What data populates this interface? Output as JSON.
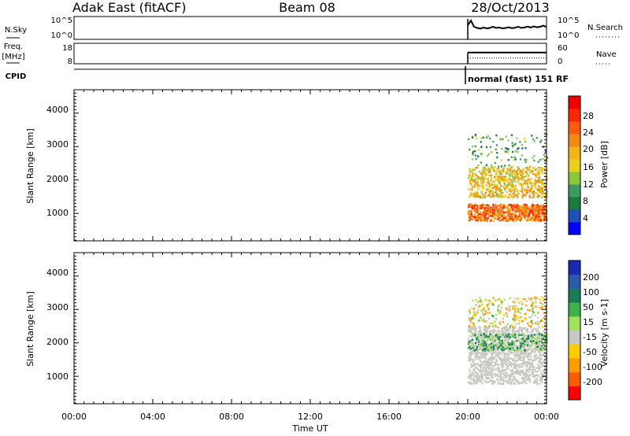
{
  "header": {
    "station": "Adak East (fitACF)",
    "beam": "Beam 08",
    "date": "28/Oct/2013"
  },
  "noise_panel": {
    "left_label": "N.Sky",
    "left_ticks": [
      "10^5",
      "10^0"
    ],
    "right_ticks": [
      "10^5",
      "10^0"
    ],
    "right_label": "N.Search",
    "sky_levels": [
      0.62,
      0.82,
      0.55,
      0.5,
      0.47,
      0.52,
      0.48,
      0.5,
      0.55,
      0.5,
      0.52,
      0.48,
      0.5,
      0.53,
      0.49,
      0.51,
      0.55,
      0.5,
      0.52,
      0.56,
      0.52,
      0.57,
      0.53,
      0.55,
      0.6,
      0.54
    ]
  },
  "freq_panel": {
    "left_label": "Freq.",
    "left_unit": "[MHz]",
    "left_ticks": [
      "18",
      "8"
    ],
    "right_ticks": [
      "60",
      "0"
    ],
    "right_label": "Nave",
    "freq_level": 0.55,
    "nave_level": 0.28
  },
  "cpid": {
    "label": "CPID",
    "mode": "normal (fast) 151 RF"
  },
  "power_legend": {
    "title": "Power [dB]",
    "ticks": [
      "28",
      "24",
      "20",
      "16",
      "12",
      "8",
      "4"
    ],
    "colors": [
      "#0000ff",
      "#1f4fb8",
      "#1b7a3c",
      "#3e9a60",
      "#8cc63c",
      "#e8d11d",
      "#f5b31a",
      "#f08a12",
      "#ff5a10",
      "#ff2600",
      "#f00000"
    ]
  },
  "velocity_legend": {
    "title": "Velocity [m s-1]",
    "ticks": [
      "200",
      "100",
      "50",
      "15",
      "-15",
      "-50",
      "-100",
      "-200"
    ],
    "colors": [
      "#ff0000",
      "#ff5c00",
      "#ff9c00",
      "#ffcc00",
      "#c8c8c0",
      "#9ee35a",
      "#3fb04a",
      "#1a7a5a",
      "#2a5aa8",
      "#1a2ab0"
    ]
  },
  "chart_data": [
    {
      "type": "heatmap",
      "title": "Power [dB]",
      "xlabel": "",
      "ylabel": "Slant Range [km]",
      "x_ticks": [
        "00:00",
        "04:00",
        "08:00",
        "12:00",
        "16:00",
        "20:00",
        "00:00"
      ],
      "xlim_hours": [
        0,
        24
      ],
      "y_ticks": [
        "1000",
        "2000",
        "3000",
        "4000"
      ],
      "ylim": [
        180,
        4700
      ],
      "colorbar_range": [
        0,
        32
      ],
      "scatter_regions": [
        {
          "t_start": 20.0,
          "t_end": 24.0,
          "range_min": 800,
          "range_max": 1300,
          "power": 24
        },
        {
          "t_start": 20.0,
          "t_end": 24.0,
          "range_min": 1500,
          "range_max": 2400,
          "power": 18
        },
        {
          "t_start": 20.0,
          "t_end": 24.0,
          "range_min": 2400,
          "range_max": 3400,
          "power": 10
        }
      ]
    },
    {
      "type": "heatmap",
      "title": "Velocity [m s-1]",
      "xlabel": "Time UT",
      "ylabel": "Slant Range [km]",
      "x_ticks": [
        "00:00",
        "04:00",
        "08:00",
        "12:00",
        "16:00",
        "20:00",
        "00:00"
      ],
      "xlim_hours": [
        0,
        24
      ],
      "y_ticks": [
        "1000",
        "2000",
        "3000",
        "4000"
      ],
      "ylim": [
        180,
        4700
      ],
      "colorbar_range": [
        -250,
        250
      ],
      "scatter_regions": [
        {
          "t_start": 20.0,
          "t_end": 24.0,
          "range_min": 800,
          "range_max": 2500,
          "velocity": 0
        },
        {
          "t_start": 20.0,
          "t_end": 24.0,
          "range_min": 1800,
          "range_max": 2300,
          "velocity": 80
        },
        {
          "t_start": 20.0,
          "t_end": 24.0,
          "range_min": 2500,
          "range_max": 3400,
          "velocity": -20
        }
      ]
    }
  ]
}
